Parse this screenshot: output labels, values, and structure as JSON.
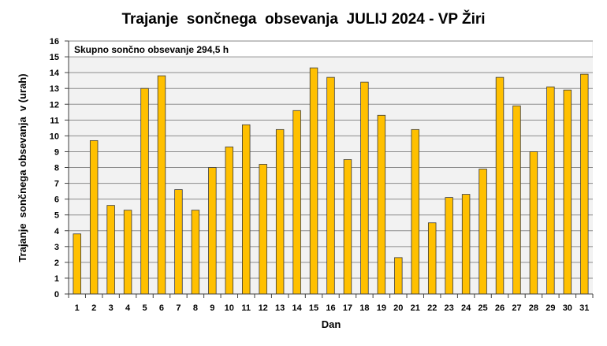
{
  "chart_data": {
    "type": "bar",
    "title": "Trajanje  sončnega  obsevanja  JULIJ 2024 - VP Žiri",
    "xlabel": "Dan",
    "ylabel": "Trajanje  sončnega obsevanja  v (urah)",
    "annotation": "Skupno sončno obsevanje 294,5 h",
    "categories": [
      "1",
      "2",
      "3",
      "4",
      "5",
      "6",
      "7",
      "8",
      "9",
      "10",
      "11",
      "12",
      "13",
      "14",
      "15",
      "16",
      "17",
      "18",
      "19",
      "20",
      "21",
      "22",
      "23",
      "24",
      "25",
      "26",
      "27",
      "28",
      "29",
      "30",
      "31"
    ],
    "values": [
      3.8,
      9.7,
      5.6,
      5.3,
      13.0,
      13.8,
      6.6,
      5.3,
      8.0,
      9.3,
      10.7,
      8.2,
      10.4,
      11.6,
      14.3,
      13.7,
      8.5,
      13.4,
      11.3,
      2.3,
      10.4,
      4.5,
      6.1,
      6.3,
      7.9,
      13.7,
      11.9,
      9.0,
      13.1,
      12.9,
      13.9
    ],
    "ylim": [
      0,
      16
    ],
    "yticks": [
      0,
      1,
      2,
      3,
      4,
      5,
      6,
      7,
      8,
      9,
      10,
      11,
      12,
      13,
      14,
      15,
      16
    ],
    "grid": true,
    "legend": "none",
    "colors": {
      "bar_fill": "#FFC000",
      "bar_stroke": "#3a3a3a",
      "plot_background": "#F2F2F2",
      "annotation_background": "#FFFFFF",
      "grid": "#8C8C8C",
      "axis": "#404040"
    }
  }
}
